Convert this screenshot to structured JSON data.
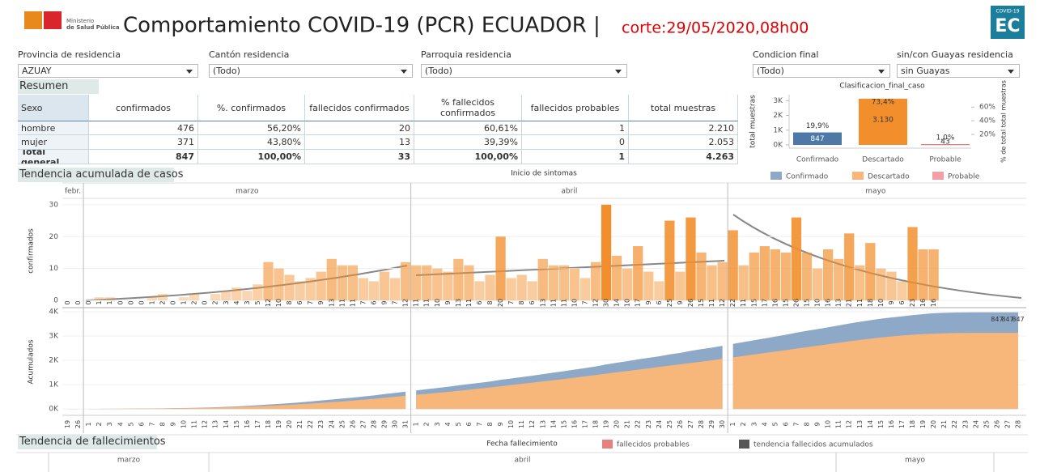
{
  "header": {
    "logo_line1": "Ministerio",
    "logo_line2": "de Salud Pública",
    "title": "Comportamiento COVID-19 (PCR) ECUADOR |",
    "cutoff": "corte:29/05/2020,08h00",
    "badge_top": "COVID-19",
    "badge": "EC"
  },
  "filters": [
    {
      "label": "Provincia de residencia",
      "value": "AZUAY"
    },
    {
      "label": "Cantón residencia",
      "value": "(Todo)"
    },
    {
      "label": "Parroquia residencia",
      "value": "(Todo)"
    },
    {
      "label": "Condicion final",
      "value": "(Todo)"
    },
    {
      "label": "sin/con Guayas residencia",
      "value": "sin Guayas"
    }
  ],
  "summary": {
    "title": "Resumen",
    "columns": [
      "Sexo",
      "confirmados",
      "%. confirmados",
      "fallecidos confirmados",
      "% fallecidos confirmados",
      "fallecidos probables",
      "total muestras"
    ],
    "rows": [
      [
        "hombre",
        "476",
        "56,20%",
        "20",
        "60,61%",
        "1",
        "2.210"
      ],
      [
        "mujer",
        "371",
        "43,80%",
        "13",
        "39,39%",
        "0",
        "2.053"
      ],
      [
        "Total general",
        "847",
        "100,00%",
        "33",
        "100,00%",
        "1",
        "4.263"
      ]
    ]
  },
  "chart_data": [
    {
      "type": "bar",
      "title": "Clasificacion_final_caso",
      "categories": [
        "Confirmado",
        "Descartado",
        "Probable"
      ],
      "values": [
        847,
        3130,
        43
      ],
      "value_labels": [
        "847",
        "3.130",
        "43"
      ],
      "colors": [
        "#4e79a7",
        "#f28e2b",
        "#e15759"
      ],
      "legend_colors": [
        "#8ea9c8",
        "#f7b77b",
        "#f2a0a6"
      ],
      "ylabel": "total muestras",
      "ylim": [
        0,
        3400
      ],
      "yticks": [
        {
          "value": 0,
          "label": "0K"
        },
        {
          "value": 1000,
          "label": "1K"
        },
        {
          "value": 2000,
          "label": "2K"
        },
        {
          "value": 3000,
          "label": "3K"
        }
      ],
      "pct": {
        "values": [
          19.9,
          73.4,
          1.0
        ],
        "value_labels": [
          "19,9%",
          "73,4%",
          "1,0%"
        ],
        "axis": "y2"
      },
      "y2label": "% de total total muestras",
      "y2lim": [
        0,
        78
      ],
      "y2ticks": [
        {
          "value": 20,
          "label": "20%"
        },
        {
          "value": 40,
          "label": "40%"
        },
        {
          "value": 60,
          "label": "60%"
        }
      ]
    },
    {
      "type": "bar",
      "title": "Tendencia acumulada de casos",
      "xlabel": "Inicio de sintomas",
      "ylabel": "confirmados",
      "ylim": [
        0,
        32
      ],
      "yticks": [
        0,
        10,
        20,
        30
      ],
      "color": "#f28e2b",
      "y2label": "Acumulados",
      "y2lim": [
        -230,
        4100
      ],
      "y2ticks": [
        {
          "value": 0,
          "label": "0K"
        },
        {
          "value": 1000,
          "label": "1K"
        },
        {
          "value": 2000,
          "label": "2K"
        },
        {
          "value": 3000,
          "label": "3K"
        },
        {
          "value": 4000,
          "label": "4K"
        }
      ],
      "stack_colors": [
        "#f7b77b",
        "#8ea9c8"
      ],
      "months": [
        {
          "name": "febr.",
          "days": [
            19,
            26
          ],
          "values": [
            0,
            0
          ],
          "stacked": [
            [
              3,
              3
            ],
            [
              0,
              0
            ]
          ]
        },
        {
          "name": "marzo",
          "days": [
            1,
            2,
            3,
            4,
            5,
            6,
            7,
            8,
            9,
            10,
            11,
            12,
            13,
            14,
            15,
            16,
            17,
            18,
            19,
            20,
            21,
            22,
            23,
            24,
            25,
            26,
            27,
            28,
            29,
            30,
            31
          ],
          "values": [
            0,
            1,
            1,
            0,
            0,
            0,
            1,
            2,
            0,
            1,
            2,
            0,
            2,
            3,
            4,
            3,
            5,
            12,
            10,
            8,
            6,
            7,
            9,
            13,
            11,
            11,
            7,
            6,
            9,
            7,
            12
          ],
          "stacked": [
            [
              3,
              4,
              5,
              7,
              9,
              12,
              15,
              19,
              24,
              30,
              37,
              45,
              55,
              66,
              79,
              93,
              109,
              127,
              147,
              169,
              193,
              219,
              247,
              277,
              309,
              343,
              379,
              417,
              457,
              499,
              543
            ],
            [
              1,
              1,
              1,
              1,
              2,
              4,
              4,
              5,
              7,
              7,
              9,
              12,
              16,
              19,
              24,
              36,
              46,
              54,
              60,
              67,
              76,
              89,
              100,
              111,
              118,
              124,
              133,
              140,
              152,
              160,
              168
            ]
          ]
        },
        {
          "name": "abril",
          "days": [
            1,
            2,
            3,
            4,
            5,
            6,
            7,
            8,
            9,
            10,
            11,
            12,
            13,
            14,
            15,
            16,
            17,
            18,
            19,
            20,
            21,
            22,
            23,
            24,
            25,
            26,
            27,
            28,
            29,
            30
          ],
          "values": [
            11,
            11,
            10,
            9,
            13,
            11,
            6,
            8,
            20,
            7,
            8,
            6,
            13,
            11,
            11,
            10,
            7,
            12,
            30,
            14,
            10,
            17,
            9,
            6,
            25,
            9,
            26,
            15,
            11,
            12
          ],
          "stacked": [
            [
              580,
              620,
              660,
              700,
              745,
              790,
              835,
              880,
              930,
              980,
              1030,
              1080,
              1130,
              1180,
              1230,
              1285,
              1340,
              1395,
              1450,
              1505,
              1560,
              1615,
              1670,
              1725,
              1780,
              1835,
              1890,
              1945,
              2000,
              2060
            ],
            [
              179,
              190,
              200,
              209,
              222,
              233,
              239,
              247,
              267,
              274,
              282,
              288,
              301,
              312,
              323,
              333,
              340,
              352,
              382,
              396,
              406,
              423,
              432,
              438,
              463,
              472,
              498,
              513,
              524,
              536
            ]
          ]
        },
        {
          "name": "mayo",
          "days": [
            1,
            2,
            3,
            4,
            5,
            6,
            7,
            8,
            9,
            10,
            11,
            12,
            13,
            14,
            15,
            16,
            17,
            18,
            19,
            20,
            21,
            22,
            23,
            24,
            25,
            26,
            27,
            28
          ],
          "values": [
            22,
            11,
            15,
            17,
            16,
            15,
            26,
            15,
            10,
            16,
            13,
            21,
            11,
            18,
            10,
            9,
            6,
            23,
            16,
            16,
            null,
            null,
            null,
            null,
            null,
            null,
            null,
            null
          ],
          "stacked": [
            [
              2120,
              2180,
              2240,
              2300,
              2360,
              2420,
              2480,
              2540,
              2600,
              2660,
              2720,
              2780,
              2840,
              2890,
              2940,
              2980,
              3020,
              3050,
              3075,
              3095,
              3110,
              3120,
              3125,
              3130,
              3130,
              3130,
              3130,
              3130
            ],
            [
              558,
              569,
              584,
              601,
              617,
              632,
              658,
              673,
              683,
              699,
              712,
              733,
              744,
              762,
              772,
              781,
              787,
              810,
              826,
              842,
              845,
              847,
              847,
              847,
              847,
              847,
              847,
              847
            ]
          ]
        }
      ]
    },
    {
      "type": "bar",
      "title": "Tendencia de fallecimientos",
      "xlabel": "Fecha fallecimiento",
      "series": [
        {
          "name": "fallecidos probables",
          "color": "#e88080"
        },
        {
          "name": "tendencia fallecidos acumulados",
          "color": "#555555"
        }
      ],
      "months": [
        "marzo",
        "abril",
        "mayo"
      ]
    }
  ]
}
